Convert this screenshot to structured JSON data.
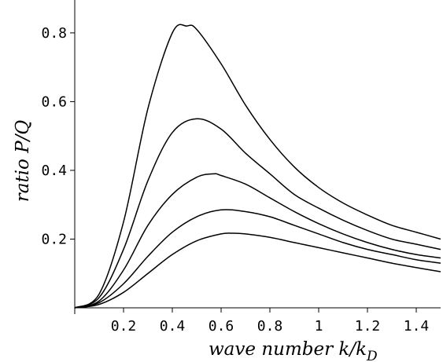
{
  "chart_data": {
    "type": "line",
    "title": "",
    "xlabel_main": "wave number k/k",
    "xlabel_sub": "D",
    "ylabel": "ratio P/Q",
    "xlim": [
      0,
      1.5
    ],
    "ylim": [
      0,
      0.85
    ],
    "grid": false,
    "x_ticks": [
      {
        "value": 0.2,
        "label": "0.2"
      },
      {
        "value": 0.4,
        "label": "0.4"
      },
      {
        "value": 0.6,
        "label": "0.6"
      },
      {
        "value": 0.8,
        "label": "0.8"
      },
      {
        "value": 1.0,
        "label": "1"
      },
      {
        "value": 1.2,
        "label": "1.2"
      },
      {
        "value": 1.4,
        "label": "1.4"
      }
    ],
    "y_ticks": [
      {
        "value": 0.2,
        "label": "0.2"
      },
      {
        "value": 0.4,
        "label": "0.4"
      },
      {
        "value": 0.6,
        "label": "0.6"
      },
      {
        "value": 0.8,
        "label": "0.8"
      }
    ],
    "series": [
      {
        "x": [
          0,
          0.1,
          0.2,
          0.3,
          0.4,
          0.46,
          0.5,
          0.6,
          0.7,
          0.8,
          0.9,
          1.0,
          1.1,
          1.2,
          1.3,
          1.4,
          1.5
        ],
        "values": [
          0,
          0.04,
          0.25,
          0.58,
          0.8,
          0.82,
          0.81,
          0.71,
          0.59,
          0.49,
          0.41,
          0.35,
          0.305,
          0.27,
          0.24,
          0.22,
          0.2
        ]
      },
      {
        "x": [
          0,
          0.1,
          0.2,
          0.3,
          0.4,
          0.5,
          0.6,
          0.7,
          0.8,
          0.9,
          1.0,
          1.1,
          1.2,
          1.3,
          1.4,
          1.5
        ],
        "values": [
          0,
          0.03,
          0.17,
          0.37,
          0.51,
          0.55,
          0.52,
          0.45,
          0.39,
          0.33,
          0.29,
          0.255,
          0.225,
          0.2,
          0.185,
          0.17
        ]
      },
      {
        "x": [
          0,
          0.1,
          0.2,
          0.3,
          0.4,
          0.5,
          0.57,
          0.6,
          0.7,
          0.8,
          0.9,
          1.0,
          1.1,
          1.2,
          1.3,
          1.4,
          1.5
        ],
        "values": [
          0,
          0.02,
          0.11,
          0.24,
          0.33,
          0.38,
          0.39,
          0.385,
          0.36,
          0.32,
          0.28,
          0.245,
          0.215,
          0.19,
          0.17,
          0.155,
          0.145
        ]
      },
      {
        "x": [
          0,
          0.1,
          0.2,
          0.3,
          0.4,
          0.5,
          0.6,
          0.7,
          0.8,
          0.9,
          1.0,
          1.1,
          1.2,
          1.3,
          1.4,
          1.5
        ],
        "values": [
          0,
          0.015,
          0.07,
          0.15,
          0.22,
          0.265,
          0.285,
          0.28,
          0.265,
          0.24,
          0.215,
          0.19,
          0.17,
          0.155,
          0.14,
          0.13
        ]
      },
      {
        "x": [
          0,
          0.1,
          0.2,
          0.3,
          0.4,
          0.5,
          0.6,
          0.65,
          0.7,
          0.8,
          0.9,
          1.0,
          1.1,
          1.2,
          1.3,
          1.4,
          1.5
        ],
        "values": [
          0,
          0.01,
          0.045,
          0.1,
          0.155,
          0.195,
          0.215,
          0.217,
          0.215,
          0.205,
          0.19,
          0.175,
          0.16,
          0.145,
          0.13,
          0.117,
          0.105
        ]
      }
    ]
  }
}
